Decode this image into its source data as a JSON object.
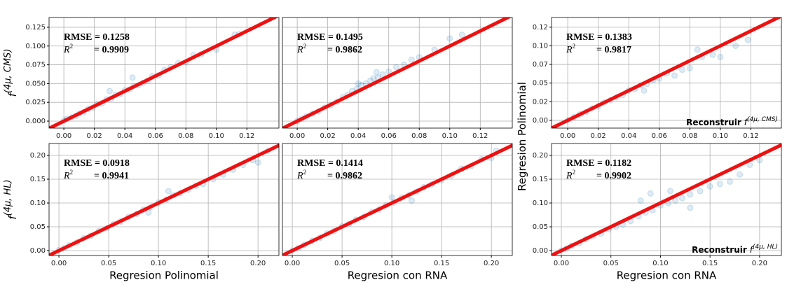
{
  "chart_data": [
    {
      "type": "scatter",
      "color": "#1f77b4",
      "diagonal_color": "#ee1111",
      "grid": true,
      "show_ytick_labels": true,
      "ylabel_base": "f",
      "ylabel_sup": "(4μ, CMS)",
      "rmse": "RMSE = 0.1258",
      "r2_label": "R",
      "r2_sup": "2",
      "r2_value": "= 0.9909",
      "xlim": [
        -0.0097,
        0.141
      ],
      "ylim": [
        -0.0093,
        0.138
      ],
      "xticks": [
        {
          "value": 0,
          "label": "0.00"
        },
        0.02,
        0.04,
        0.06,
        0.08,
        {
          "value": 0.1,
          "label": "0.10"
        },
        0.12
      ],
      "yticks": [
        {
          "value": 0,
          "label": "0.000"
        },
        0.025,
        {
          "value": 0.05,
          "label": "0.050"
        },
        0.075,
        {
          "value": 0.1,
          "label": "0.100"
        },
        0.125
      ],
      "x": [
        0.0,
        0.002,
        0.005,
        0.008,
        0.01,
        0.013,
        0.016,
        0.019,
        0.022,
        0.025,
        0.028,
        0.031,
        0.034,
        0.037,
        0.04,
        0.043,
        0.046,
        0.049,
        0.052,
        0.055,
        0.058,
        0.062,
        0.066,
        0.07,
        0.075,
        0.08,
        0.085,
        0.09,
        0.1,
        0.112,
        0.115,
        0.03,
        0.045
      ],
      "values": [
        0.001,
        0.003,
        0.005,
        0.007,
        0.01,
        0.012,
        0.016,
        0.018,
        0.023,
        0.024,
        0.029,
        0.03,
        0.035,
        0.036,
        0.041,
        0.042,
        0.047,
        0.048,
        0.051,
        0.054,
        0.06,
        0.061,
        0.068,
        0.072,
        0.077,
        0.078,
        0.088,
        0.089,
        0.095,
        0.115,
        0.116,
        0.04,
        0.058
      ]
    },
    {
      "type": "scatter",
      "color": "#1f77b4",
      "diagonal_color": "#ee1111",
      "grid": true,
      "show_ytick_labels": false,
      "rmse": "RMSE = 0.1495",
      "r2_label": "R",
      "r2_sup": "2",
      "r2_value": "= 0.9862",
      "xlim": [
        -0.0097,
        0.141
      ],
      "ylim": [
        -0.0093,
        0.138
      ],
      "xticks": [
        {
          "value": 0,
          "label": "0.00"
        },
        0.02,
        0.04,
        0.06,
        0.08,
        {
          "value": 0.1,
          "label": "0.10"
        },
        0.12
      ],
      "yticks": [
        0,
        0.025,
        0.05,
        0.075,
        0.1,
        0.125
      ],
      "x": [
        0.0,
        0.003,
        0.006,
        0.01,
        0.014,
        0.018,
        0.022,
        0.026,
        0.03,
        0.033,
        0.036,
        0.039,
        0.042,
        0.045,
        0.048,
        0.05,
        0.053,
        0.056,
        0.06,
        0.065,
        0.07,
        0.075,
        0.08,
        0.09,
        0.1,
        0.108,
        0.04,
        0.052
      ],
      "values": [
        0.0,
        0.003,
        0.006,
        0.01,
        0.013,
        0.018,
        0.021,
        0.026,
        0.032,
        0.035,
        0.04,
        0.043,
        0.048,
        0.05,
        0.054,
        0.057,
        0.058,
        0.062,
        0.066,
        0.072,
        0.075,
        0.082,
        0.085,
        0.095,
        0.11,
        0.115,
        0.05,
        0.065
      ]
    },
    {
      "type": "scatter",
      "color": "#1f77b4",
      "diagonal_color": "#ee1111",
      "grid": true,
      "show_ytick_labels": true,
      "ylabel": "Regresion Polinomial",
      "rmse": "RMSE = 0.1383",
      "r2_label": "R",
      "r2_sup": "2",
      "r2_value": "= 0.9817",
      "note": "Reconstruir",
      "note_base": "f",
      "note_sup": "(4μ, CMS)",
      "xlim": [
        -0.0106,
        0.14
      ],
      "ylim": [
        -0.0104,
        0.138
      ],
      "xticks": [
        {
          "value": 0,
          "label": "0.00"
        },
        0.02,
        0.04,
        0.06,
        0.08,
        {
          "value": 0.1,
          "label": "0.10"
        },
        0.12
      ],
      "yticks": [
        {
          "value": 0,
          "label": "0.00"
        },
        {
          "value": 0.025,
          "label": "0.02"
        },
        0.05,
        {
          "value": 0.075,
          "label": "0.07"
        },
        {
          "value": 0.1,
          "label": "0.10"
        },
        {
          "value": 0.125,
          "label": "0.12"
        }
      ],
      "x": [
        0.0,
        0.004,
        0.008,
        0.012,
        0.016,
        0.02,
        0.024,
        0.028,
        0.032,
        0.036,
        0.04,
        0.044,
        0.048,
        0.052,
        0.056,
        0.06,
        0.065,
        0.07,
        0.075,
        0.08,
        0.088,
        0.095,
        0.1,
        0.11,
        0.118,
        0.085,
        0.05
      ],
      "values": [
        0.0,
        0.004,
        0.008,
        0.011,
        0.016,
        0.019,
        0.024,
        0.027,
        0.031,
        0.034,
        0.04,
        0.042,
        0.047,
        0.049,
        0.054,
        0.056,
        0.063,
        0.06,
        0.068,
        0.07,
        0.085,
        0.088,
        0.085,
        0.1,
        0.108,
        0.095,
        0.04
      ]
    },
    {
      "type": "scatter",
      "color": "#1f77b4",
      "diagonal_color": "#ee1111",
      "grid": true,
      "show_ytick_labels": true,
      "ylabel_base": "f",
      "ylabel_sup": "(4μ, HL)",
      "xlabel": "Regresion Polinomial",
      "rmse": "RMSE = 0.0918",
      "r2_label": "R",
      "r2_sup": "2",
      "r2_value": "= 0.9941",
      "xlim": [
        -0.0099,
        0.221
      ],
      "ylim": [
        -0.0103,
        0.225
      ],
      "xticks": [
        {
          "value": 0,
          "label": "0.00"
        },
        0.05,
        {
          "value": 0.1,
          "label": "0.10"
        },
        0.15,
        {
          "value": 0.2,
          "label": "0.20"
        }
      ],
      "yticks": [
        {
          "value": 0,
          "label": "0.00"
        },
        0.05,
        {
          "value": 0.1,
          "label": "0.10"
        },
        0.15,
        {
          "value": 0.2,
          "label": "0.20"
        }
      ],
      "x": [
        0.0,
        0.005,
        0.01,
        0.018,
        0.025,
        0.032,
        0.04,
        0.048,
        0.055,
        0.062,
        0.07,
        0.078,
        0.085,
        0.092,
        0.1,
        0.108,
        0.115,
        0.122,
        0.13,
        0.138,
        0.145,
        0.155,
        0.165,
        0.175,
        0.185,
        0.195,
        0.2,
        0.21,
        0.11,
        0.09
      ],
      "values": [
        0.001,
        0.005,
        0.011,
        0.017,
        0.026,
        0.031,
        0.041,
        0.047,
        0.056,
        0.061,
        0.071,
        0.077,
        0.086,
        0.091,
        0.101,
        0.107,
        0.116,
        0.121,
        0.128,
        0.136,
        0.14,
        0.15,
        0.16,
        0.17,
        0.18,
        0.19,
        0.185,
        0.21,
        0.125,
        0.08
      ]
    },
    {
      "type": "scatter",
      "color": "#1f77b4",
      "diagonal_color": "#ee1111",
      "grid": true,
      "show_ytick_labels": false,
      "xlabel": "Regresion con RNA",
      "rmse": "RMSE = 0.1414",
      "r2_label": "R",
      "r2_sup": "2",
      "r2_value": "= 0.9862",
      "xlim": [
        -0.0099,
        0.221
      ],
      "ylim": [
        -0.0103,
        0.225
      ],
      "xticks": [
        {
          "value": 0,
          "label": "0.00"
        },
        0.05,
        {
          "value": 0.1,
          "label": "0.10"
        },
        0.15,
        {
          "value": 0.2,
          "label": "0.20"
        }
      ],
      "yticks": [
        0,
        0.05,
        0.1,
        0.15,
        0.2
      ],
      "x": [
        0.0,
        0.006,
        0.012,
        0.02,
        0.028,
        0.035,
        0.042,
        0.05,
        0.057,
        0.064,
        0.072,
        0.08,
        0.087,
        0.094,
        0.102,
        0.11,
        0.117,
        0.125,
        0.132,
        0.14,
        0.15,
        0.16,
        0.17,
        0.18,
        0.19,
        0.2,
        0.205,
        0.1,
        0.12
      ],
      "values": [
        0.0,
        0.005,
        0.012,
        0.021,
        0.027,
        0.036,
        0.041,
        0.051,
        0.056,
        0.065,
        0.071,
        0.081,
        0.086,
        0.095,
        0.101,
        0.111,
        0.116,
        0.124,
        0.133,
        0.139,
        0.148,
        0.158,
        0.172,
        0.178,
        0.192,
        0.195,
        0.21,
        0.112,
        0.105
      ]
    },
    {
      "type": "scatter",
      "color": "#1f77b4",
      "diagonal_color": "#ee1111",
      "grid": true,
      "show_ytick_labels": true,
      "xlabel": "Regresion con RNA",
      "rmse": "RMSE = 0.1182",
      "r2_label": "R",
      "r2_sup": "2",
      "r2_value": "= 0.9902",
      "note": "Reconstruir",
      "note_base": "f",
      "note_sup": "(4μ, HL)",
      "xlim": [
        -0.0099,
        0.222
      ],
      "ylim": [
        -0.0103,
        0.225
      ],
      "xticks": [
        {
          "value": 0,
          "label": "0.00"
        },
        0.05,
        {
          "value": 0.1,
          "label": "0.10"
        },
        0.15,
        {
          "value": 0.2,
          "label": "0.20"
        }
      ],
      "yticks": [
        {
          "value": 0,
          "label": "0.00"
        },
        0.05,
        {
          "value": 0.1,
          "label": "0.10"
        },
        0.15,
        {
          "value": 0.2,
          "label": "0.20"
        }
      ],
      "x": [
        0.0,
        0.005,
        0.01,
        0.018,
        0.025,
        0.032,
        0.04,
        0.048,
        0.055,
        0.062,
        0.07,
        0.078,
        0.085,
        0.092,
        0.1,
        0.108,
        0.115,
        0.122,
        0.13,
        0.14,
        0.15,
        0.16,
        0.17,
        0.18,
        0.19,
        0.2,
        0.09,
        0.08,
        0.13,
        0.11
      ],
      "values": [
        0.0,
        0.004,
        0.01,
        0.016,
        0.024,
        0.03,
        0.036,
        0.045,
        0.05,
        0.055,
        0.062,
        0.072,
        0.08,
        0.085,
        0.095,
        0.1,
        0.105,
        0.11,
        0.118,
        0.125,
        0.135,
        0.14,
        0.145,
        0.16,
        0.18,
        0.19,
        0.12,
        0.105,
        0.09,
        0.125
      ]
    }
  ]
}
